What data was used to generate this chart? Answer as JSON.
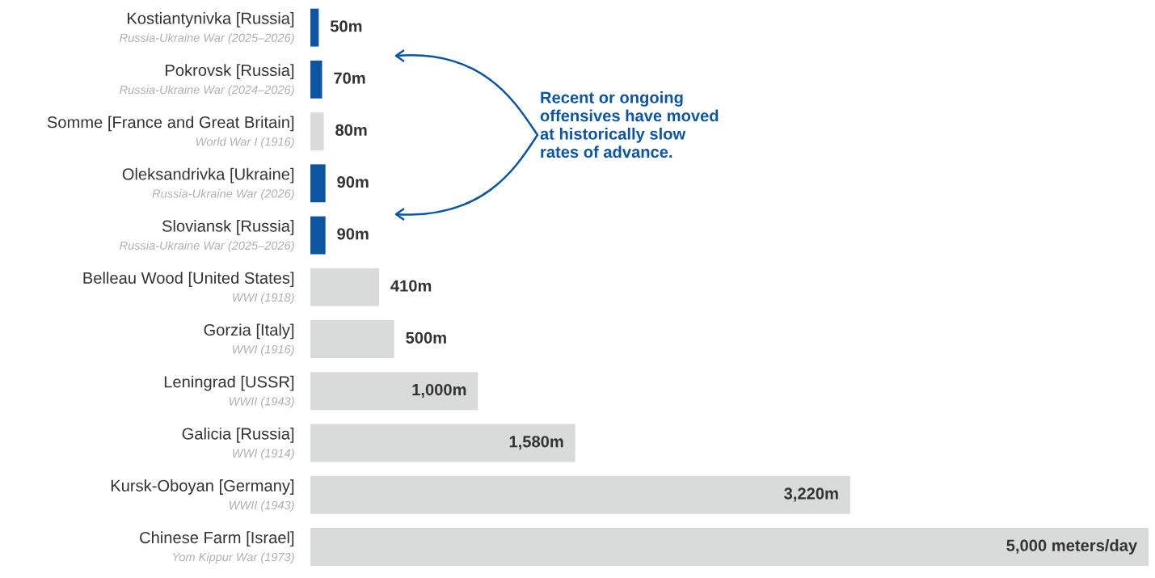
{
  "chart_data": {
    "type": "bar",
    "orientation": "horizontal",
    "categories": [
      "Kostiantynivka [Russia]\nRussia-Ukraine War (2025–2026)",
      "Pokrovsk [Russia]\nRussia-Ukraine War (2024–2026)",
      "Somme [France and Great Britain]\nWorld War I (1916)",
      "Oleksandrivka [Ukraine]\nRussia-Ukraine War (2026)",
      "Sloviansk [Russia]\nRussia-Ukraine War (2025–2026)",
      "Belleau Wood [United States]\nWWI (1918)",
      "Gorzia [Italy]\nWWI (1916)",
      "Leningrad [USSR]\nWWII (1943)",
      "Galicia [Russia]\nWWI (1914)",
      "Kursk-Oboyan [Germany]\nWWII (1943)",
      "Chinese Farm [Israel]\nYom Kippur War (1973)"
    ],
    "values": [
      50,
      70,
      80,
      90,
      90,
      410,
      500,
      1000,
      1580,
      3220,
      5000
    ],
    "colors": [
      "#0b55a3",
      "#0b55a3",
      "#d9dada",
      "#0b55a3",
      "#0b55a3",
      "#d9dada",
      "#d9dada",
      "#d9dada",
      "#d9dada",
      "#d9dada",
      "#d9dada"
    ],
    "value_labels": [
      "50m",
      "70m",
      "80m",
      "90m",
      "90m",
      "410m",
      "500m",
      "1,000m",
      "1,580m",
      "3,220m",
      "5,000 meters/day"
    ],
    "xlim": [
      0,
      5000
    ],
    "annotations": [
      "Recent or ongoing\noffensives have moved\nat historically slow\nrates of advance."
    ]
  }
}
